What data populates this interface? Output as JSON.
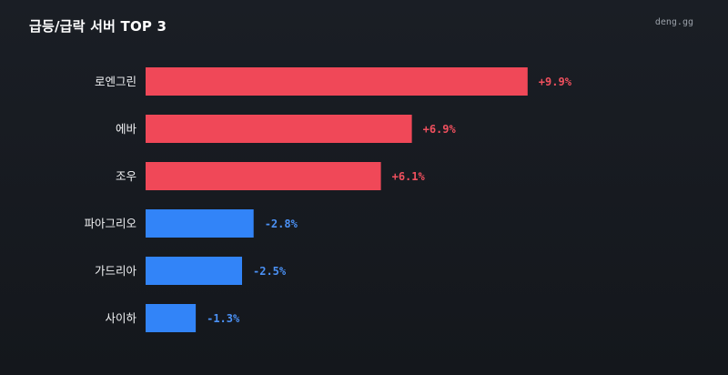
{
  "header": {
    "title": "급등/급락 서버 TOP 3",
    "brand": "deng.gg"
  },
  "colors": {
    "up": "#f04858",
    "down": "#3284f8",
    "up_text": "#f0505e",
    "down_text": "#4b91f5"
  },
  "chart_data": {
    "type": "bar",
    "orientation": "horizontal",
    "title": "급등/급락 서버 TOP 3",
    "categories": [
      "로엔그린",
      "에바",
      "조우",
      "파아그리오",
      "가드리아",
      "사이하"
    ],
    "values": [
      9.9,
      6.9,
      6.1,
      -2.8,
      -2.5,
      -1.3
    ],
    "value_labels": [
      "+9.9%",
      "+6.9%",
      "+6.1%",
      "-2.8%",
      "-2.5%",
      "-1.3%"
    ],
    "unit": "%",
    "grid": false,
    "legend": false
  }
}
